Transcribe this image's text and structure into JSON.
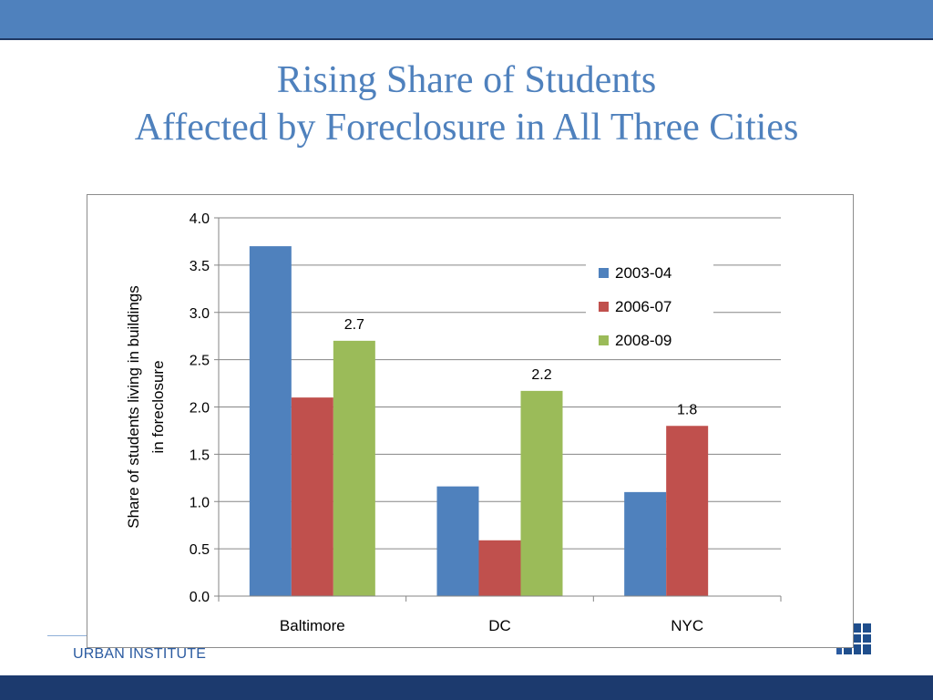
{
  "slide": {
    "title_line1": "Rising Share of Students",
    "title_line2": "Affected by Foreclosure in All Three Cities",
    "brand": "URBAN INSTITUTE"
  },
  "colors": {
    "band": "#4f81bd",
    "bottom_band": "#1c3a6e",
    "title": "#4f81bd",
    "series": [
      "#4f81bd",
      "#c0504d",
      "#9bbb59"
    ]
  },
  "chart_data": {
    "type": "bar",
    "title": "",
    "xlabel": "",
    "ylabel_lines": [
      "Share of students living in buildings",
      "in foreclosure"
    ],
    "categories": [
      "Baltimore",
      "DC",
      "NYC"
    ],
    "series": [
      {
        "name": "2003-04",
        "values": [
          3.7,
          1.16,
          1.1
        ]
      },
      {
        "name": "2006-07",
        "values": [
          2.1,
          0.59,
          1.8
        ]
      },
      {
        "name": "2008-09",
        "values": [
          2.7,
          2.17,
          null
        ]
      }
    ],
    "data_labels": [
      {
        "series": 2,
        "category": 0,
        "text": "2.7"
      },
      {
        "series": 2,
        "category": 1,
        "text": "2.2"
      },
      {
        "series": 1,
        "category": 2,
        "text": "1.8"
      }
    ],
    "ylim": [
      0,
      4
    ],
    "yticks": [
      "0.0",
      "0.5",
      "1.0",
      "1.5",
      "2.0",
      "2.5",
      "3.0",
      "3.5",
      "4.0"
    ],
    "grid": true,
    "legend_position": "top-right"
  }
}
